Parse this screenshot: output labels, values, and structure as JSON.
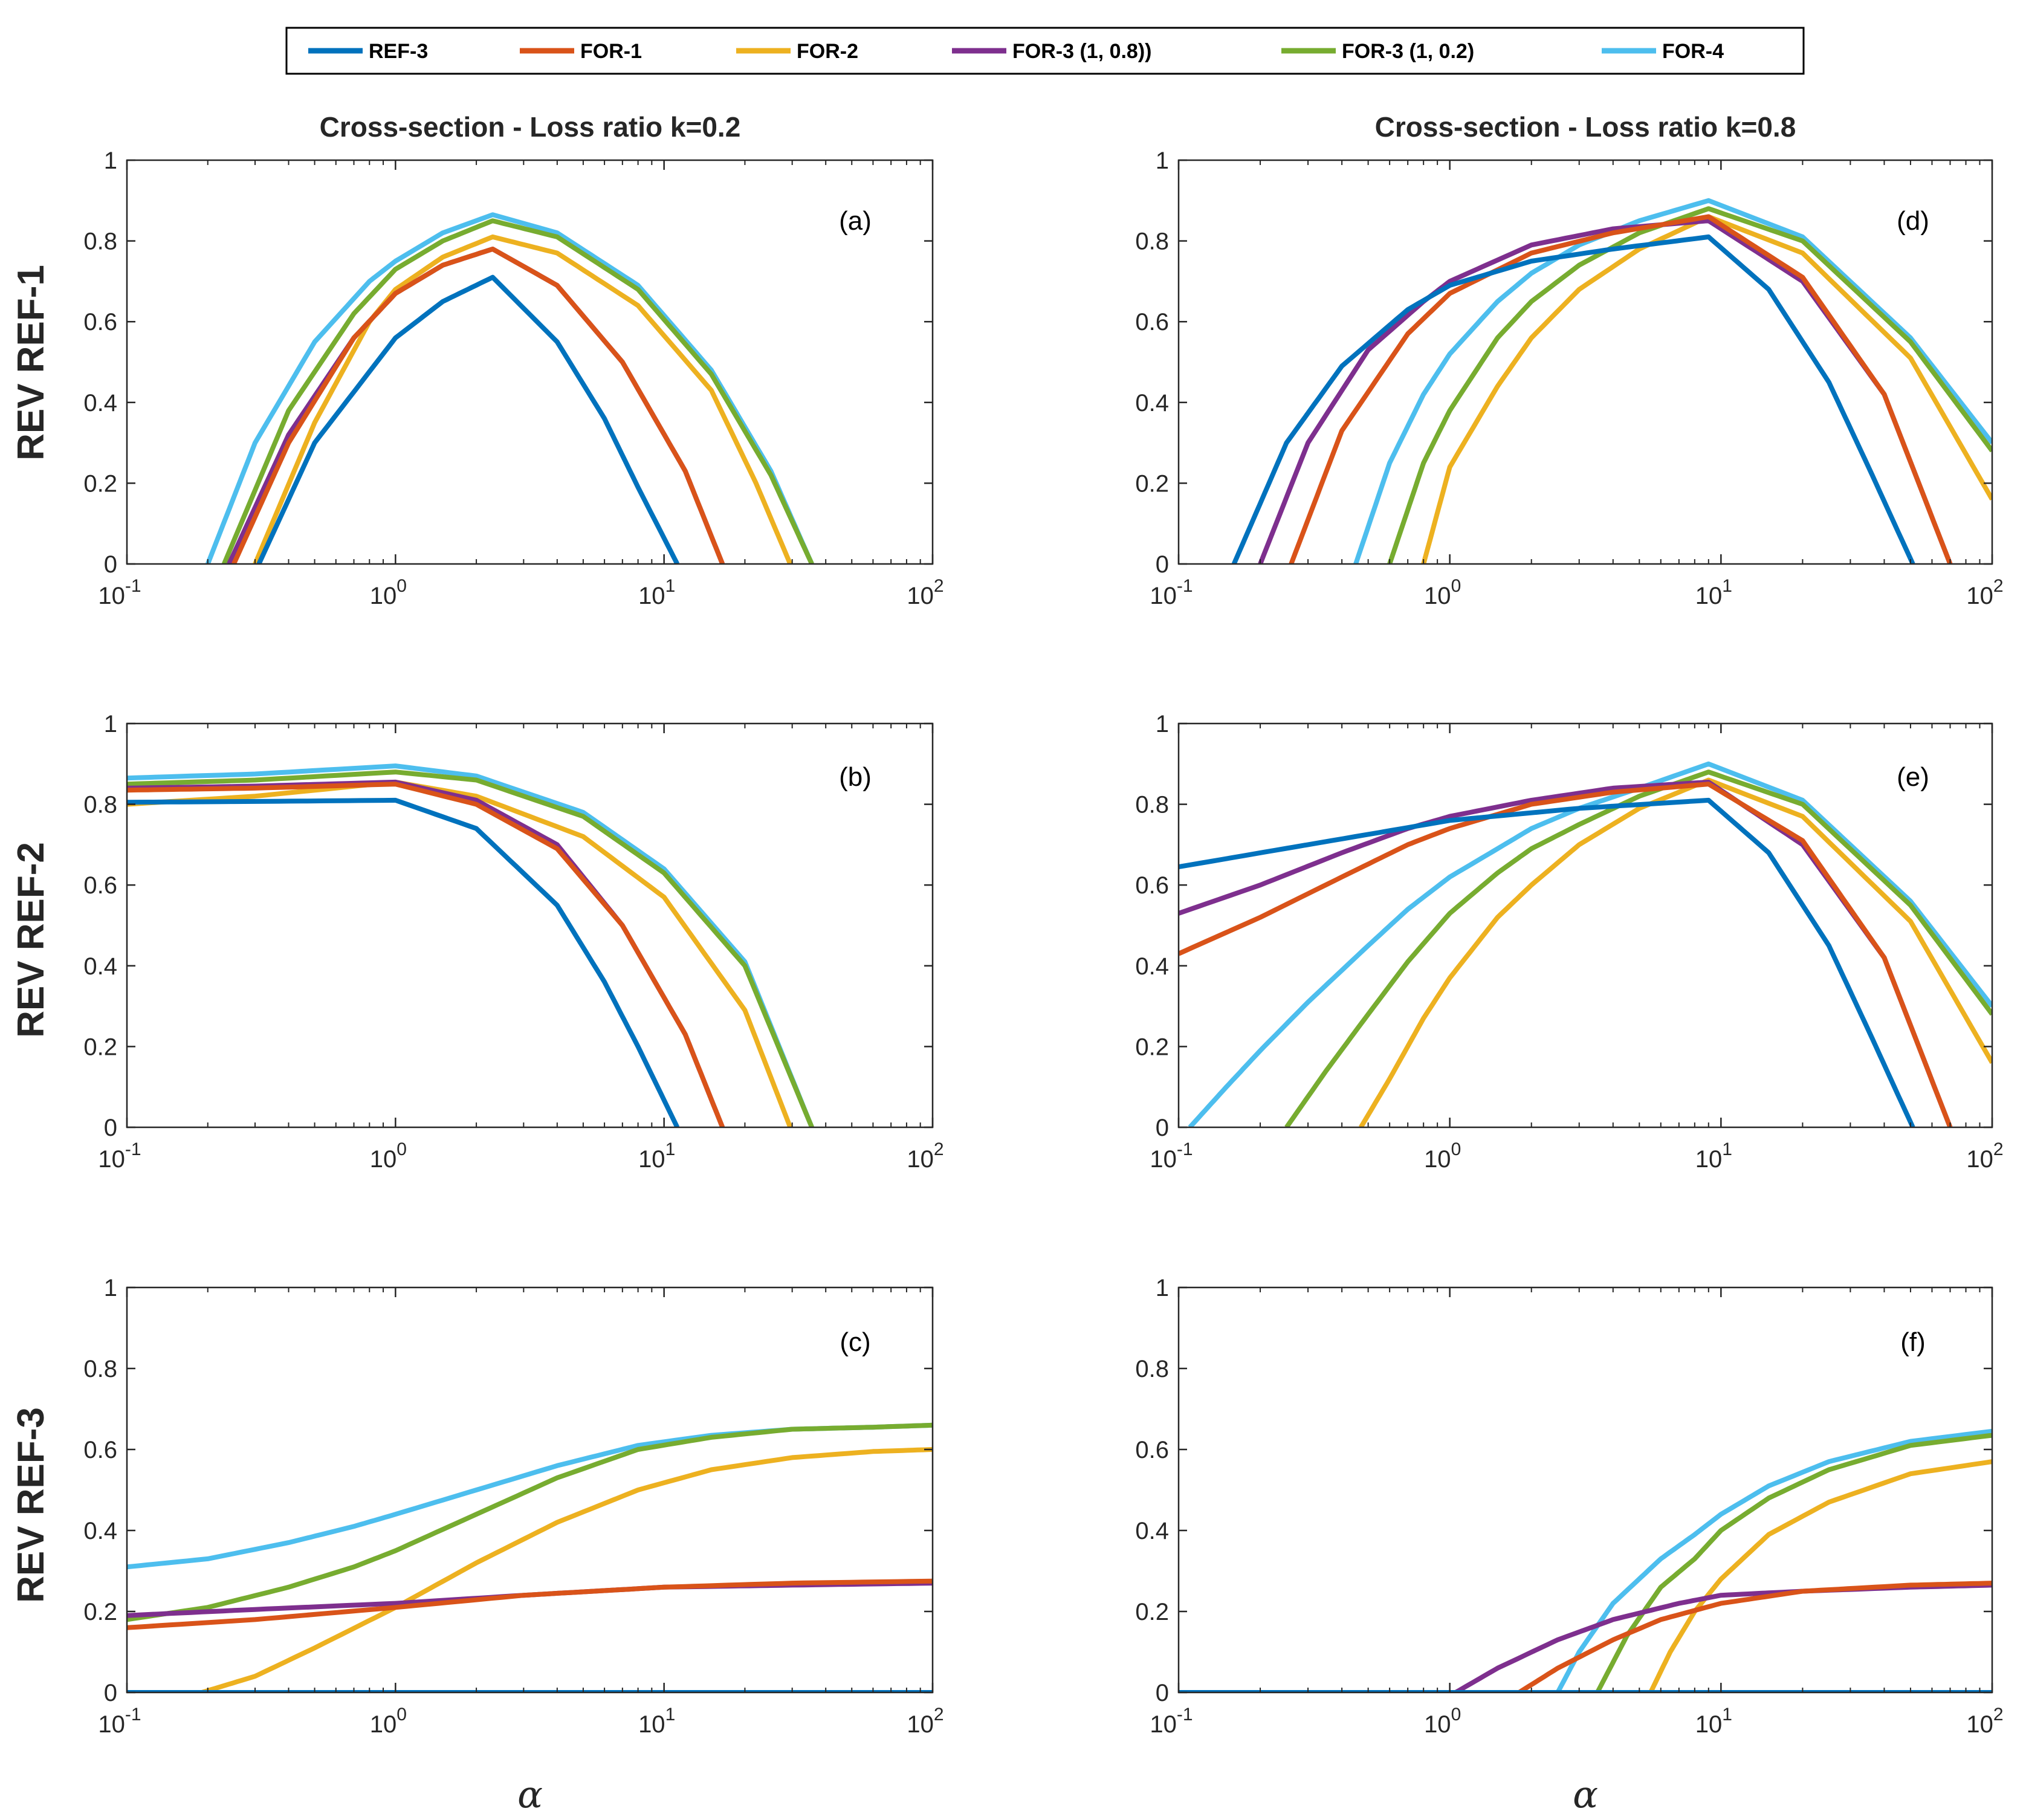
{
  "colors": {
    "REF-3": "#0072BD",
    "FOR-1": "#D95319",
    "FOR-2": "#EDB120",
    "FOR-3 (1, 0.8))": "#7E2F8E",
    "FOR-3 (1, 0.2)": "#77AC30",
    "FOR-4": "#4DBEEE"
  },
  "legend": [
    "REF-3",
    "FOR-1",
    "FOR-2",
    "FOR-3 (1, 0.8))",
    "FOR-3 (1, 0.2)",
    "FOR-4"
  ],
  "column_titles": [
    "Cross-section  - Loss ratio k=0.2",
    "Cross-section  - Loss ratio k=0.8"
  ],
  "row_labels": [
    "REV REF-1",
    "REV REF-2",
    "REV REF-3"
  ],
  "xlabel": "α",
  "yticks": [
    "0",
    "0.2",
    "0.4",
    "0.6",
    "0.8",
    "1"
  ],
  "xticks": [
    {
      "base": "10",
      "exp": "-1"
    },
    {
      "base": "10",
      "exp": "0"
    },
    {
      "base": "10",
      "exp": "1"
    },
    {
      "base": "10",
      "exp": "2"
    }
  ],
  "chart_data": [
    {
      "panel": "(a)",
      "type": "line",
      "xscale": "log",
      "xlim": [
        0.1,
        100
      ],
      "ylim": [
        0,
        1
      ],
      "title": "Cross-section  - Loss ratio k=0.2",
      "ylabel": "REV REF-1",
      "series": [
        {
          "name": "REF-3",
          "x": [
            0.31,
            0.5,
            1,
            1.5,
            2.3,
            4,
            6,
            8,
            11.2
          ],
          "y": [
            0,
            0.3,
            0.56,
            0.65,
            0.71,
            0.55,
            0.36,
            0.19,
            0
          ]
        },
        {
          "name": "FOR-1",
          "x": [
            0.25,
            0.4,
            0.7,
            1,
            1.5,
            2.3,
            4,
            7,
            12,
            16.5
          ],
          "y": [
            0,
            0.3,
            0.56,
            0.67,
            0.74,
            0.78,
            0.69,
            0.5,
            0.23,
            0
          ]
        },
        {
          "name": "FOR-2",
          "x": [
            0.3,
            0.5,
            0.8,
            1,
            1.5,
            2.3,
            4,
            8,
            15,
            22,
            29.5
          ],
          "y": [
            0,
            0.35,
            0.6,
            0.68,
            0.76,
            0.81,
            0.77,
            0.64,
            0.43,
            0.2,
            0
          ]
        },
        {
          "name": "FOR-3 (1, 0.8))",
          "x": [
            0.24,
            0.4,
            0.7,
            1,
            1.5,
            2.3,
            4,
            7,
            12,
            16.5
          ],
          "y": [
            0,
            0.32,
            0.56,
            0.67,
            0.74,
            0.78,
            0.69,
            0.5,
            0.23,
            0
          ]
        },
        {
          "name": "FOR-3 (1, 0.2)",
          "x": [
            0.23,
            0.4,
            0.7,
            1,
            1.5,
            2.3,
            4,
            8,
            15,
            25,
            35.5
          ],
          "y": [
            0,
            0.38,
            0.62,
            0.73,
            0.8,
            0.85,
            0.81,
            0.68,
            0.47,
            0.22,
            0
          ]
        },
        {
          "name": "FOR-4",
          "x": [
            0.2,
            0.3,
            0.5,
            0.8,
            1,
            1.5,
            2.3,
            4,
            8,
            15,
            25,
            35.5
          ],
          "y": [
            0,
            0.3,
            0.55,
            0.7,
            0.75,
            0.82,
            0.865,
            0.82,
            0.69,
            0.48,
            0.23,
            0
          ]
        }
      ]
    },
    {
      "panel": "(d)",
      "type": "line",
      "xscale": "log",
      "xlim": [
        0.1,
        100
      ],
      "ylim": [
        0,
        1
      ],
      "title": "Cross-section  - Loss ratio k=0.8",
      "ylabel": "REV REF-1",
      "series": [
        {
          "name": "REF-3",
          "x": [
            0.16,
            0.25,
            0.4,
            0.7,
            1,
            2,
            4,
            9,
            15,
            25,
            35,
            51
          ],
          "y": [
            0,
            0.3,
            0.49,
            0.63,
            0.69,
            0.75,
            0.78,
            0.81,
            0.68,
            0.45,
            0.24,
            0
          ]
        },
        {
          "name": "FOR-1",
          "x": [
            0.26,
            0.4,
            0.7,
            1,
            2,
            4,
            9,
            20,
            40,
            70
          ],
          "y": [
            0,
            0.33,
            0.57,
            0.67,
            0.77,
            0.82,
            0.86,
            0.71,
            0.42,
            0
          ]
        },
        {
          "name": "FOR-2",
          "x": [
            0.8,
            1,
            1.5,
            2,
            3,
            5,
            9,
            20,
            50,
            100
          ],
          "y": [
            0,
            0.24,
            0.44,
            0.56,
            0.68,
            0.78,
            0.86,
            0.77,
            0.51,
            0.16
          ]
        },
        {
          "name": "FOR-3 (1, 0.8))",
          "x": [
            0.2,
            0.3,
            0.5,
            0.8,
            1,
            2,
            4,
            9,
            20,
            40,
            70
          ],
          "y": [
            0,
            0.3,
            0.53,
            0.65,
            0.7,
            0.79,
            0.83,
            0.85,
            0.7,
            0.42,
            0
          ]
        },
        {
          "name": "FOR-3 (1, 0.2)",
          "x": [
            0.6,
            0.8,
            1,
            1.5,
            2,
            3,
            5,
            9,
            20,
            50,
            100
          ],
          "y": [
            0,
            0.25,
            0.38,
            0.56,
            0.65,
            0.74,
            0.82,
            0.88,
            0.8,
            0.55,
            0.28
          ]
        },
        {
          "name": "FOR-4",
          "x": [
            0.45,
            0.6,
            0.8,
            1,
            1.5,
            2,
            3,
            5,
            9,
            20,
            50,
            100
          ],
          "y": [
            0,
            0.25,
            0.42,
            0.52,
            0.65,
            0.72,
            0.79,
            0.85,
            0.9,
            0.81,
            0.56,
            0.3
          ]
        }
      ]
    },
    {
      "panel": "(b)",
      "type": "line",
      "xscale": "log",
      "xlim": [
        0.1,
        100
      ],
      "ylim": [
        0,
        1
      ],
      "ylabel": "REV REF-2",
      "series": [
        {
          "name": "REF-3",
          "x": [
            0.1,
            0.3,
            1,
            2,
            4,
            6,
            8,
            11.2
          ],
          "y": [
            0.805,
            0.807,
            0.81,
            0.74,
            0.55,
            0.36,
            0.2,
            0
          ]
        },
        {
          "name": "FOR-1",
          "x": [
            0.1,
            0.3,
            1,
            2,
            4,
            7,
            12,
            16.5
          ],
          "y": [
            0.835,
            0.84,
            0.85,
            0.8,
            0.69,
            0.5,
            0.23,
            0
          ]
        },
        {
          "name": "FOR-2",
          "x": [
            0.1,
            0.3,
            1,
            2,
            5,
            10,
            20,
            29.5
          ],
          "y": [
            0.8,
            0.82,
            0.855,
            0.82,
            0.72,
            0.57,
            0.29,
            0
          ]
        },
        {
          "name": "FOR-3 (1, 0.8))",
          "x": [
            0.1,
            0.3,
            1,
            2,
            4,
            7,
            12,
            16.5
          ],
          "y": [
            0.84,
            0.845,
            0.855,
            0.81,
            0.7,
            0.5,
            0.23,
            0
          ]
        },
        {
          "name": "FOR-3 (1, 0.2)",
          "x": [
            0.1,
            0.3,
            1,
            2,
            5,
            10,
            20,
            35.5
          ],
          "y": [
            0.85,
            0.86,
            0.88,
            0.86,
            0.77,
            0.63,
            0.4,
            0
          ]
        },
        {
          "name": "FOR-4",
          "x": [
            0.1,
            0.3,
            1,
            2,
            5,
            10,
            20,
            35.5
          ],
          "y": [
            0.865,
            0.875,
            0.895,
            0.87,
            0.78,
            0.64,
            0.41,
            0
          ]
        }
      ]
    },
    {
      "panel": "(e)",
      "type": "line",
      "xscale": "log",
      "xlim": [
        0.1,
        100
      ],
      "ylim": [
        0,
        1
      ],
      "ylabel": "REV REF-2",
      "series": [
        {
          "name": "REF-3",
          "x": [
            0.1,
            0.3,
            1,
            3,
            9,
            15,
            25,
            35,
            51
          ],
          "y": [
            0.645,
            0.7,
            0.76,
            0.79,
            0.81,
            0.68,
            0.45,
            0.24,
            0
          ]
        },
        {
          "name": "FOR-1",
          "x": [
            0.1,
            0.2,
            0.4,
            0.7,
            1,
            2,
            4,
            9,
            20,
            40,
            70
          ],
          "y": [
            0.43,
            0.52,
            0.62,
            0.7,
            0.74,
            0.8,
            0.83,
            0.85,
            0.71,
            0.42,
            0
          ]
        },
        {
          "name": "FOR-2",
          "x": [
            0.47,
            0.6,
            0.8,
            1,
            1.5,
            2,
            3,
            5,
            9,
            20,
            50,
            100
          ],
          "y": [
            0,
            0.12,
            0.27,
            0.37,
            0.52,
            0.6,
            0.7,
            0.79,
            0.86,
            0.77,
            0.51,
            0.16
          ]
        },
        {
          "name": "FOR-3 (1, 0.8))",
          "x": [
            0.1,
            0.2,
            0.4,
            0.7,
            1,
            2,
            4,
            9,
            20,
            40,
            70
          ],
          "y": [
            0.53,
            0.6,
            0.68,
            0.74,
            0.77,
            0.81,
            0.84,
            0.855,
            0.7,
            0.42,
            0
          ]
        },
        {
          "name": "FOR-3 (1, 0.2)",
          "x": [
            0.25,
            0.35,
            0.5,
            0.7,
            1,
            1.5,
            2,
            3,
            5,
            9,
            20,
            50,
            100
          ],
          "y": [
            0,
            0.14,
            0.28,
            0.41,
            0.53,
            0.63,
            0.69,
            0.75,
            0.82,
            0.88,
            0.8,
            0.55,
            0.28
          ]
        },
        {
          "name": "FOR-4",
          "x": [
            0.11,
            0.15,
            0.2,
            0.3,
            0.5,
            0.7,
            1,
            1.5,
            2,
            3,
            5,
            9,
            20,
            50,
            100
          ],
          "y": [
            0,
            0.1,
            0.19,
            0.31,
            0.45,
            0.54,
            0.62,
            0.69,
            0.74,
            0.79,
            0.84,
            0.9,
            0.81,
            0.56,
            0.3
          ]
        }
      ]
    },
    {
      "panel": "(c)",
      "type": "line",
      "xscale": "log",
      "xlim": [
        0.1,
        100
      ],
      "ylim": [
        0,
        1
      ],
      "ylabel": "REV REF-3",
      "xlabel": "α",
      "series": [
        {
          "name": "REF-3",
          "x": [
            0.1,
            100
          ],
          "y": [
            0,
            0
          ]
        },
        {
          "name": "FOR-1",
          "x": [
            0.1,
            0.3,
            1,
            3,
            10,
            30,
            100
          ],
          "y": [
            0.16,
            0.18,
            0.21,
            0.24,
            0.26,
            0.27,
            0.275
          ]
        },
        {
          "name": "FOR-2",
          "x": [
            0.19,
            0.3,
            0.5,
            1,
            2,
            4,
            8,
            15,
            30,
            60,
            100
          ],
          "y": [
            0,
            0.04,
            0.11,
            0.21,
            0.32,
            0.42,
            0.5,
            0.55,
            0.58,
            0.595,
            0.6
          ]
        },
        {
          "name": "FOR-3 (1, 0.8))",
          "x": [
            0.1,
            0.3,
            1,
            3,
            10,
            30,
            100
          ],
          "y": [
            0.19,
            0.205,
            0.22,
            0.24,
            0.26,
            0.265,
            0.27
          ]
        },
        {
          "name": "FOR-3 (1, 0.2)",
          "x": [
            0.1,
            0.2,
            0.4,
            0.7,
            1,
            2,
            4,
            8,
            15,
            30,
            60,
            100
          ],
          "y": [
            0.18,
            0.21,
            0.26,
            0.31,
            0.35,
            0.44,
            0.53,
            0.6,
            0.63,
            0.65,
            0.655,
            0.66
          ]
        },
        {
          "name": "FOR-4",
          "x": [
            0.1,
            0.2,
            0.4,
            0.7,
            1,
            2,
            4,
            8,
            15,
            30,
            60,
            100
          ],
          "y": [
            0.31,
            0.33,
            0.37,
            0.41,
            0.44,
            0.5,
            0.56,
            0.61,
            0.635,
            0.65,
            0.655,
            0.66
          ]
        }
      ]
    },
    {
      "panel": "(f)",
      "type": "line",
      "xscale": "log",
      "xlim": [
        0.1,
        100
      ],
      "ylim": [
        0,
        1
      ],
      "ylabel": "REV REF-3",
      "xlabel": "α",
      "series": [
        {
          "name": "REF-3",
          "x": [
            0.1,
            100
          ],
          "y": [
            0,
            0
          ]
        },
        {
          "name": "FOR-1",
          "x": [
            0.1,
            1.8,
            2.5,
            4,
            6,
            10,
            20,
            50,
            100
          ],
          "y": [
            0,
            0,
            0.06,
            0.13,
            0.18,
            0.22,
            0.25,
            0.265,
            0.27
          ]
        },
        {
          "name": "FOR-2",
          "x": [
            0.1,
            5.5,
            6.5,
            8,
            10,
            15,
            25,
            50,
            100
          ],
          "y": [
            0,
            0,
            0.1,
            0.2,
            0.28,
            0.39,
            0.47,
            0.54,
            0.57
          ]
        },
        {
          "name": "FOR-3 (1, 0.8))",
          "x": [
            0.1,
            1.05,
            1.5,
            2.5,
            4,
            7,
            10,
            20,
            50,
            100
          ],
          "y": [
            0,
            0,
            0.06,
            0.13,
            0.18,
            0.22,
            0.24,
            0.25,
            0.26,
            0.265
          ]
        },
        {
          "name": "FOR-3 (1, 0.2)",
          "x": [
            0.1,
            3.5,
            4.5,
            6,
            8,
            10,
            15,
            25,
            50,
            100
          ],
          "y": [
            0,
            0,
            0.14,
            0.26,
            0.33,
            0.4,
            0.48,
            0.55,
            0.61,
            0.635
          ]
        },
        {
          "name": "FOR-4",
          "x": [
            0.1,
            2.5,
            3,
            4,
            6,
            8,
            10,
            15,
            25,
            50,
            100
          ],
          "y": [
            0,
            0,
            0.1,
            0.22,
            0.33,
            0.39,
            0.44,
            0.51,
            0.57,
            0.62,
            0.645
          ]
        }
      ]
    }
  ],
  "panel_labels": [
    "(a)",
    "(d)",
    "(b)",
    "(e)",
    "(c)",
    "(f)"
  ]
}
